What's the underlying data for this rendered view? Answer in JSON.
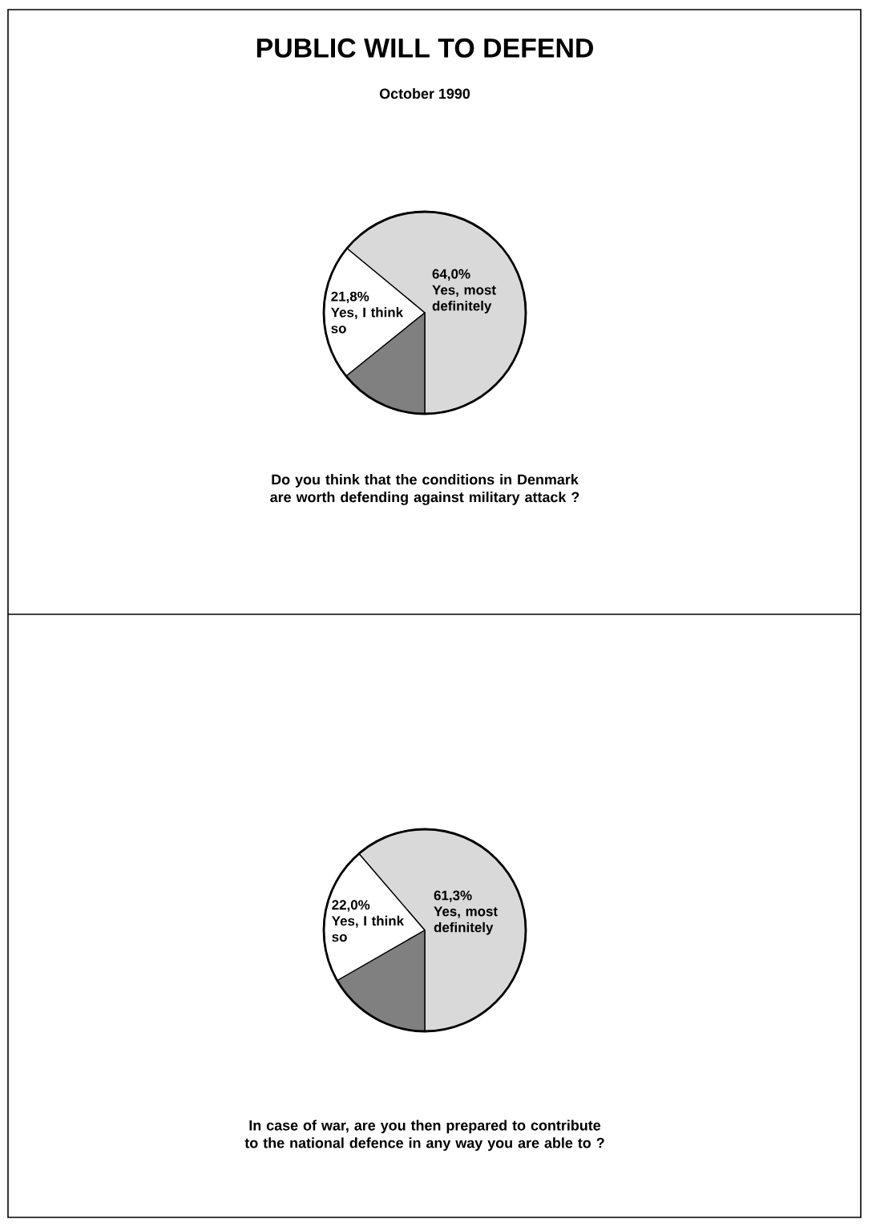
{
  "chart_data": [
    {
      "type": "pie",
      "title": "PUBLIC WILL TO DEFEND",
      "subtitle": "October 1990",
      "categories": [
        "Yes, most definitely",
        "Yes, I think so",
        null
      ],
      "values": [
        64.0,
        21.8,
        14.2
      ],
      "value_labels": [
        "64,0%",
        "21,8%",
        null
      ],
      "colors": [
        "#d9d9d9",
        "#ffffff",
        "#808080"
      ],
      "annotations": [
        "Do you think that the conditions in Denmark are worth defending against military attack ?"
      ]
    },
    {
      "type": "pie",
      "categories": [
        "Yes, most definitely",
        "Yes, I think so",
        null
      ],
      "values": [
        61.3,
        22.0,
        16.7
      ],
      "value_labels": [
        "61,3%",
        "22,0%",
        null
      ],
      "colors": [
        "#d9d9d9",
        "#ffffff",
        "#808080"
      ],
      "annotations": [
        "In case of war, are you then prepared to contribute to the national defence in any way you are able to ?"
      ]
    }
  ]
}
